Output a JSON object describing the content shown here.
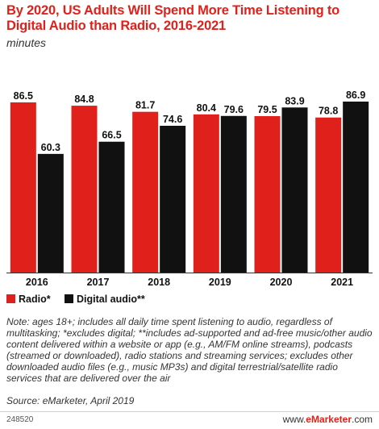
{
  "title": "By 2020, US Adults Will Spend More Time Listening to Digital Audio than Radio, 2016-2021",
  "subtitle": "minutes",
  "colors": {
    "radio": "#e0211b",
    "digital": "#111111",
    "accent": "#e0211b"
  },
  "chart_data": {
    "type": "bar",
    "categories": [
      "2016",
      "2017",
      "2018",
      "2019",
      "2020",
      "2021"
    ],
    "series": [
      {
        "name": "Radio*",
        "values": [
          86.5,
          84.8,
          81.7,
          80.4,
          79.5,
          78.8
        ]
      },
      {
        "name": "Digital audio**",
        "values": [
          60.3,
          66.5,
          74.6,
          79.6,
          83.9,
          86.9
        ]
      }
    ],
    "value_labels": {
      "Radio*": [
        "86.5",
        "84.8",
        "81.7",
        "80.4",
        "79.5",
        "78.8"
      ],
      "Digital audio**": [
        "60.3",
        "66.5",
        "74.6",
        "79.6",
        "83.9",
        "86.9"
      ]
    },
    "ylim": [
      0,
      100
    ],
    "grid": false,
    "legend": "bottom-left"
  },
  "note": "Note: ages 18+; includes all daily time spent listening to audio, regardless of multitasking; *excludes digital; **includes ad-supported and ad-free music/other audio content delivered within a website or app (e.g., AM/FM online streams), podcasts (streamed or downloaded), radio stations and streaming services; excludes other downloaded audio files (e.g., music MP3s) and digital terrestrial/satellite radio services that are delivered over the air",
  "source": "Source: eMarketer, April 2019",
  "footer": {
    "id": "248520",
    "logo_prefix": "www.",
    "logo_brand": "eMarketer",
    "logo_suffix": ".com"
  }
}
